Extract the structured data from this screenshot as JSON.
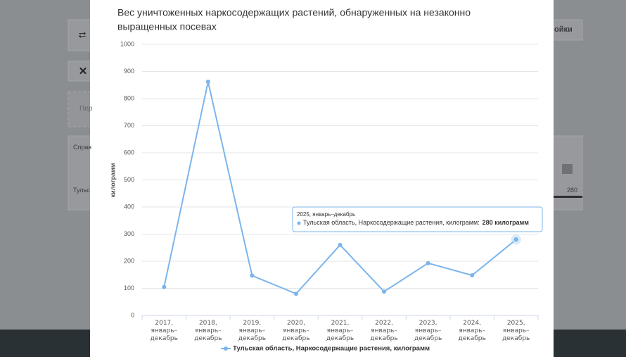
{
  "background": {
    "texts": [
      "ойки",
      "Пер",
      "Справ",
      "Тульс",
      "280"
    ]
  },
  "chart_data": {
    "type": "line",
    "title": "Вес уничтоженных наркосодержащих растений, обнаруженных на незаконно выращенных посевах",
    "y_label": "килограмм",
    "categories": [
      "2017, январь–декабрь",
      "2018, январь–декабрь",
      "2019, январь–декабрь",
      "2020, январь–декабрь",
      "2021, январь–декабрь",
      "2022, январь–декабрь",
      "2023, январь–декабрь",
      "2024, январь–декабрь",
      "2025, январь–декабрь"
    ],
    "series": [
      {
        "name": "Тульская область, Наркосодержащие растения, килограмм",
        "color": "#7cb5ec",
        "values": [
          105,
          862,
          147,
          80,
          260,
          88,
          193,
          148,
          280
        ]
      }
    ],
    "ylim": [
      0,
      1000
    ],
    "yticks": [
      0,
      100,
      200,
      300,
      400,
      500,
      600,
      700,
      800,
      900,
      1000
    ],
    "grid": true,
    "legend": "bottom",
    "tooltip": {
      "title": "2025, январь–декабрь",
      "label": "Тульская область, Наркосодержащие растения, килограмм:",
      "value": "280 килограмм"
    }
  }
}
